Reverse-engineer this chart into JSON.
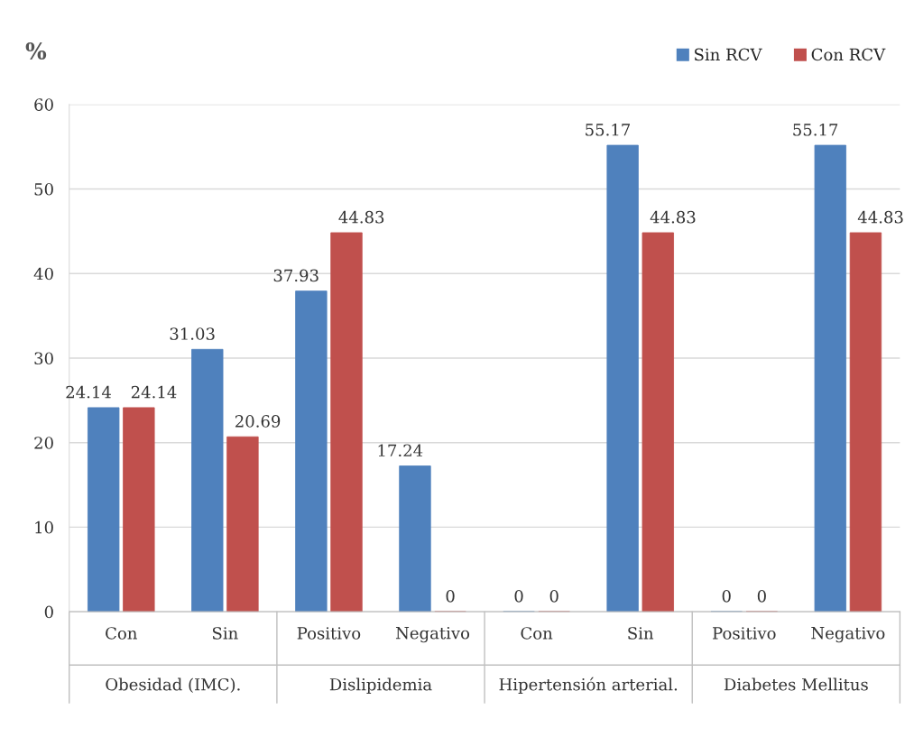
{
  "chart_data": {
    "type": "bar",
    "ylabel": "%",
    "categories": [
      "Con",
      "Sin",
      "Positivo",
      "Negativo",
      "Con",
      "Sin",
      "Positivo",
      "Negativo"
    ],
    "series": [
      {
        "name": "Sin RCV",
        "color": "#4f81bd",
        "values": [
          24.14,
          31.03,
          37.93,
          17.24,
          0,
          55.17,
          0,
          55.17
        ]
      },
      {
        "name": "Con RCV",
        "color": "#c0504d",
        "values": [
          24.14,
          20.69,
          44.83,
          0,
          0,
          44.83,
          0,
          44.83
        ]
      }
    ],
    "annotations": [
      "Obesidad (IMC).",
      "Dislipidemia",
      "Hipertensión arterial.",
      "Diabetes Mellitus"
    ],
    "ylim": [
      0,
      60
    ],
    "yticks": [
      0,
      10,
      20,
      30,
      40,
      50,
      60
    ],
    "grid": "y",
    "legend": "top right",
    "data_labels": true
  }
}
